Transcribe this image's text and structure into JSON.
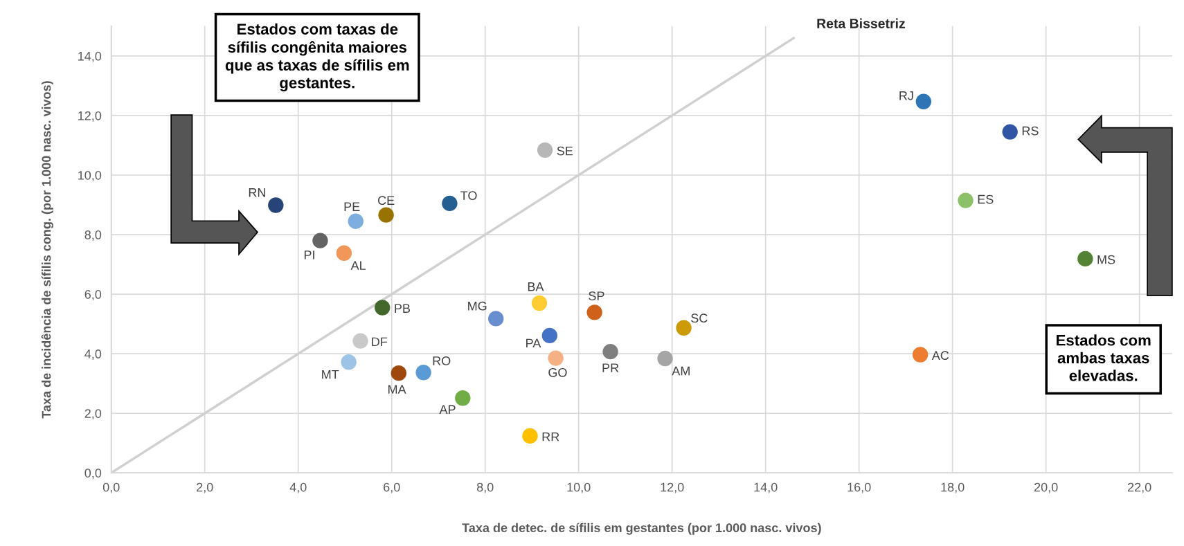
{
  "chart_data": {
    "type": "scatter",
    "xlabel": "Taxa de detec. de sífilis em gestantes (por 1.000 nasc. vivos)",
    "ylabel": "Taxa de incidência de sífilis cong. (por 1.000 nasc. vivos)",
    "xlim": [
      0,
      22.7
    ],
    "ylim": [
      0,
      15
    ],
    "xticks": [
      {
        "value": 0,
        "label": "0,0"
      },
      {
        "value": 2,
        "label": "2,0"
      },
      {
        "value": 4,
        "label": "4,0"
      },
      {
        "value": 6,
        "label": "6,0"
      },
      {
        "value": 8,
        "label": "8,0"
      },
      {
        "value": 10,
        "label": "10,0"
      },
      {
        "value": 12,
        "label": "12,0"
      },
      {
        "value": 14,
        "label": "14,0"
      },
      {
        "value": 16,
        "label": "16,0"
      },
      {
        "value": 18,
        "label": "18,0"
      },
      {
        "value": 20,
        "label": "20,0"
      },
      {
        "value": 22,
        "label": "22,0"
      }
    ],
    "yticks": [
      {
        "value": 0,
        "label": "0,0"
      },
      {
        "value": 2,
        "label": "2,0"
      },
      {
        "value": 4,
        "label": "4,0"
      },
      {
        "value": 6,
        "label": "6,0"
      },
      {
        "value": 8,
        "label": "8,0"
      },
      {
        "value": 10,
        "label": "10,0"
      },
      {
        "value": 12,
        "label": "12,0"
      },
      {
        "value": 14,
        "label": "14,0"
      }
    ],
    "grid": true,
    "marker": "circle",
    "series": [
      {
        "type": "line",
        "color": "#d0d0d0",
        "marker": "none",
        "x": [
          0,
          14.6
        ],
        "values": [
          0,
          14.6
        ]
      },
      {
        "x": [
          17.38,
          19.23,
          18.28,
          20.84,
          17.31,
          9.28,
          7.24,
          5.88,
          5.23,
          3.52,
          4.47,
          4.98,
          5.8,
          8.23,
          9.16,
          10.34,
          12.25,
          9.38,
          9.51,
          10.68,
          11.85,
          5.33,
          5.08,
          6.15,
          6.68,
          7.52,
          8.96
        ],
        "values": [
          12.47,
          11.45,
          9.15,
          7.19,
          3.97,
          10.84,
          9.05,
          8.66,
          8.45,
          8.99,
          7.8,
          7.38,
          5.55,
          5.18,
          5.7,
          5.39,
          4.87,
          4.61,
          3.85,
          4.07,
          3.84,
          4.43,
          3.72,
          3.35,
          3.37,
          2.51,
          1.24
        ],
        "colors": [
          "#2e75b6",
          "#2f55a4",
          "#8cc168",
          "#548235",
          "#ed7d31",
          "#b7b7b7",
          "#255e91",
          "#997300",
          "#7caee0",
          "#264478",
          "#636363",
          "#f1975a",
          "#43682b",
          "#698ed0",
          "#ffcd33",
          "#d0611a",
          "#cc9a06",
          "#4472c4",
          "#f4b183",
          "#7f7f7f",
          "#a5a5a5",
          "#c9c9c9",
          "#9dc3e6",
          "#9e480e",
          "#5b9bd5",
          "#70ad47",
          "#ffc000"
        ]
      }
    ],
    "annotations": [
      "Estados com taxas de sífilis congênita maiores que as taxas de sífilis em gestantes.",
      "Estados com ambas taxas elevadas.",
      {
        "text": "Reta Bissetriz",
        "x": 14.6,
        "y": 14.6
      },
      {
        "text": "RJ",
        "x": 17.38,
        "y": 12.47
      },
      {
        "text": "RS",
        "x": 19.23,
        "y": 11.45
      },
      {
        "text": "ES",
        "x": 18.28,
        "y": 9.15
      },
      {
        "text": "MS",
        "x": 20.84,
        "y": 7.19
      },
      {
        "text": "AC",
        "x": 17.31,
        "y": 3.97
      },
      {
        "text": "SE",
        "x": 9.28,
        "y": 10.84
      },
      {
        "text": "TO",
        "x": 7.24,
        "y": 9.05
      },
      {
        "text": "CE",
        "x": 5.88,
        "y": 8.66
      },
      {
        "text": "PE",
        "x": 5.23,
        "y": 8.45
      },
      {
        "text": "RN",
        "x": 3.52,
        "y": 8.99
      },
      {
        "text": "PI",
        "x": 4.47,
        "y": 7.8
      },
      {
        "text": "AL",
        "x": 4.98,
        "y": 7.38
      },
      {
        "text": "PB",
        "x": 5.8,
        "y": 5.55
      },
      {
        "text": "MG",
        "x": 8.23,
        "y": 5.18
      },
      {
        "text": "BA",
        "x": 9.16,
        "y": 5.7
      },
      {
        "text": "SP",
        "x": 10.34,
        "y": 5.39
      },
      {
        "text": "SC",
        "x": 12.25,
        "y": 4.87
      },
      {
        "text": "PA",
        "x": 9.38,
        "y": 4.61
      },
      {
        "text": "GO",
        "x": 9.51,
        "y": 3.85
      },
      {
        "text": "PR",
        "x": 10.68,
        "y": 4.07
      },
      {
        "text": "AM",
        "x": 11.85,
        "y": 3.84
      },
      {
        "text": "DF",
        "x": 5.33,
        "y": 4.43
      },
      {
        "text": "MT",
        "x": 5.08,
        "y": 3.72
      },
      {
        "text": "MA",
        "x": 6.15,
        "y": 3.35
      },
      {
        "text": "RO",
        "x": 6.68,
        "y": 3.37
      },
      {
        "text": "AP",
        "x": 7.52,
        "y": 2.51
      },
      {
        "text": "RR",
        "x": 8.96,
        "y": 1.24
      }
    ]
  }
}
